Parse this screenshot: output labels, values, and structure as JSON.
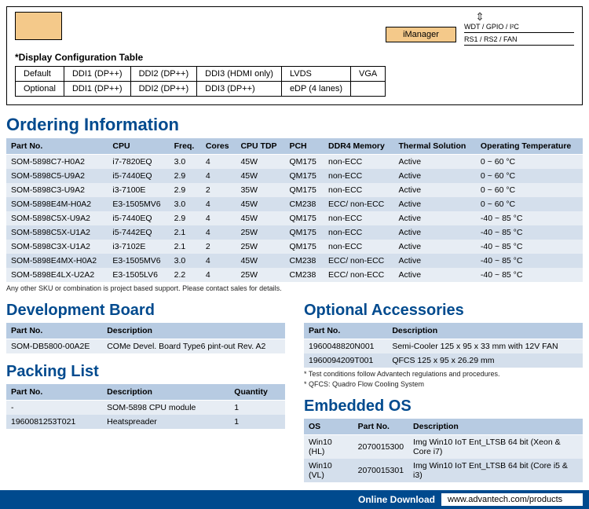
{
  "diagram": {
    "imanager_label": "iManager",
    "side_labels": [
      "WDT / GPIO / I²C",
      "RS1 / RS2 / FAN"
    ]
  },
  "display_config": {
    "caption": "*Display Configuration Table",
    "rows": [
      [
        "Default",
        "DDI1 (DP++)",
        "DDI2 (DP++)",
        "DDI3 (HDMI only)",
        "LVDS",
        "VGA"
      ],
      [
        "Optional",
        "DDI1 (DP++)",
        "DDI2 (DP++)",
        "DDI3 (DP++)",
        "eDP (4 lanes)",
        ""
      ]
    ]
  },
  "sections": {
    "ordering": "Ordering Information",
    "devboard": "Development Board",
    "packing": "Packing List",
    "accessories": "Optional Accessories",
    "embedded": "Embedded OS"
  },
  "ordering": {
    "columns": [
      "Part No.",
      "CPU",
      "Freq.",
      "Cores",
      "CPU TDP",
      "PCH",
      "DDR4 Memory",
      "Thermal Solution",
      "Operating Temperature"
    ],
    "rows": [
      [
        "SOM-5898C7-H0A2",
        "i7-7820EQ",
        "3.0",
        "4",
        "45W",
        "QM175",
        "non-ECC",
        "Active",
        "0 ~ 60 °C"
      ],
      [
        "SOM-5898C5-U9A2",
        "i5-7440EQ",
        "2.9",
        "4",
        "45W",
        "QM175",
        "non-ECC",
        "Active",
        "0 ~ 60 °C"
      ],
      [
        "SOM-5898C3-U9A2",
        "i3-7100E",
        "2.9",
        "2",
        "35W",
        "QM175",
        "non-ECC",
        "Active",
        "0 ~ 60 °C"
      ],
      [
        "SOM-5898E4M-H0A2",
        "E3-1505MV6",
        "3.0",
        "4",
        "45W",
        "CM238",
        "ECC/ non-ECC",
        "Active",
        "0 ~ 60 °C"
      ],
      [
        "SOM-5898C5X-U9A2",
        "i5-7440EQ",
        "2.9",
        "4",
        "45W",
        "QM175",
        "non-ECC",
        "Active",
        "-40 ~ 85 °C"
      ],
      [
        "SOM-5898C5X-U1A2",
        "i5-7442EQ",
        "2.1",
        "4",
        "25W",
        "QM175",
        "non-ECC",
        "Active",
        "-40 ~ 85 °C"
      ],
      [
        "SOM-5898C3X-U1A2",
        "i3-7102E",
        "2.1",
        "2",
        "25W",
        "QM175",
        "non-ECC",
        "Active",
        "-40 ~ 85 °C"
      ],
      [
        "SOM-5898E4MX-H0A2",
        "E3-1505MV6",
        "3.0",
        "4",
        "45W",
        "CM238",
        "ECC/ non-ECC",
        "Active",
        "-40 ~ 85 °C"
      ],
      [
        "SOM-5898E4LX-U2A2",
        "E3-1505LV6",
        "2.2",
        "4",
        "25W",
        "CM238",
        "ECC/ non-ECC",
        "Active",
        "-40 ~ 85 °C"
      ]
    ],
    "footnote": "Any other SKU or combination is project based support. Please contact sales for details."
  },
  "devboard": {
    "columns": [
      "Part No.",
      "Description"
    ],
    "rows": [
      [
        "SOM-DB5800-00A2E",
        "COMe Devel. Board Type6 pint-out Rev. A2"
      ]
    ]
  },
  "packing": {
    "columns": [
      "Part No.",
      "Description",
      "Quantity"
    ],
    "rows": [
      [
        "-",
        "SOM-5898 CPU module",
        "1"
      ],
      [
        "1960081253T021",
        "Heatspreader",
        "1"
      ]
    ]
  },
  "accessories": {
    "columns": [
      "Part No.",
      "Description"
    ],
    "rows": [
      [
        "1960048820N001",
        "Semi-Cooler 125 x 95 x 33 mm with 12V FAN"
      ],
      [
        "1960094209T001",
        "QFCS 125 x 95 x 26.29 mm"
      ]
    ],
    "footnotes": [
      "* Test conditions follow Advantech regulations and procedures.",
      "* QFCS: Quadro Flow Cooling System"
    ]
  },
  "embedded": {
    "columns": [
      "OS",
      "Part No.",
      "Description"
    ],
    "rows": [
      [
        "Win10 (HL)",
        "2070015300",
        "Img Win10 IoT Ent_LTSB 64 bit (Xeon & Core i7)"
      ],
      [
        "Win10 (VL)",
        "2070015301",
        "Img Win10 IoT Ent_LTSB 64 bit (Core i5 & i3)"
      ]
    ]
  },
  "download": {
    "label": "Online Download",
    "url": "www.advantech.com/products"
  }
}
